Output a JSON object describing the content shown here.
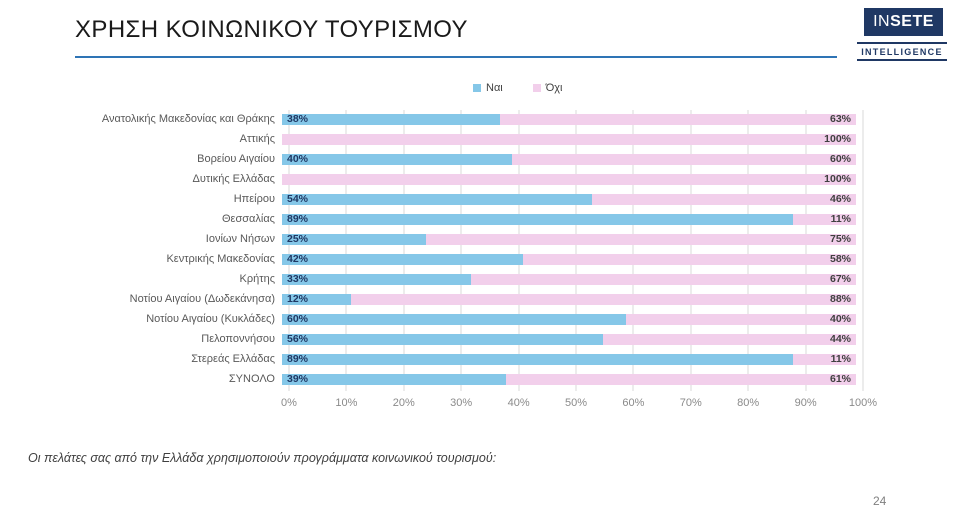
{
  "slide": {
    "title": "ΧΡΗΣΗ ΚΟΙΝΩΝΙΚΟΥ ΤΟΥΡΙΣΜΟΥ",
    "footnote": "Οι πελάτες σας από την Ελλάδα χρησιμοποιούν προγράμματα κοινωνικού τουρισμού:",
    "page_number": "24"
  },
  "logo": {
    "name_light": "IN",
    "name_bold": "SETE",
    "subtitle": "INTELLIGENCE"
  },
  "colors": {
    "yes_bar": "#85C7E8",
    "no_bar": "#F2CFEB",
    "navy": "#1F3864",
    "underline": "#2E74B5",
    "gridline": "#D9D9D9"
  },
  "chart_data": {
    "type": "bar",
    "stacked": true,
    "orientation": "horizontal",
    "title": "ΧΡΗΣΗ ΚΟΙΝΩΝΙΚΟΥ ΤΟΥΡΙΣΜΟΥ",
    "legend_position": "top",
    "grid": true,
    "xlim": [
      0,
      100
    ],
    "x_ticks": [
      "0%",
      "10%",
      "20%",
      "30%",
      "40%",
      "50%",
      "60%",
      "70%",
      "80%",
      "90%",
      "100%"
    ],
    "categories": [
      "Ανατολικής Μακεδονίας και Θράκης",
      "Αττικής",
      "Βορείου Αιγαίου",
      "Δυτικής Ελλάδας",
      "Ηπείρου",
      "Θεσσαλίας",
      "Ιονίων Νήσων",
      "Κεντρικής Μακεδονίας",
      "Κρήτης",
      "Νοτίου Αιγαίου (Δωδεκάνησα)",
      "Νοτίου Αιγαίου (Κυκλάδες)",
      "Πελοποννήσου",
      "Στερεάς Ελλάδας",
      "ΣΥΝΟΛΟ"
    ],
    "series": [
      {
        "name": "Ναι",
        "color": "#85C7E8",
        "values": [
          38,
          null,
          40,
          null,
          54,
          89,
          25,
          42,
          33,
          12,
          60,
          56,
          89,
          39
        ]
      },
      {
        "name": "Όχι",
        "color": "#F2CFEB",
        "values": [
          63,
          100,
          60,
          100,
          46,
          11,
          75,
          58,
          67,
          88,
          40,
          44,
          11,
          61
        ]
      }
    ]
  }
}
